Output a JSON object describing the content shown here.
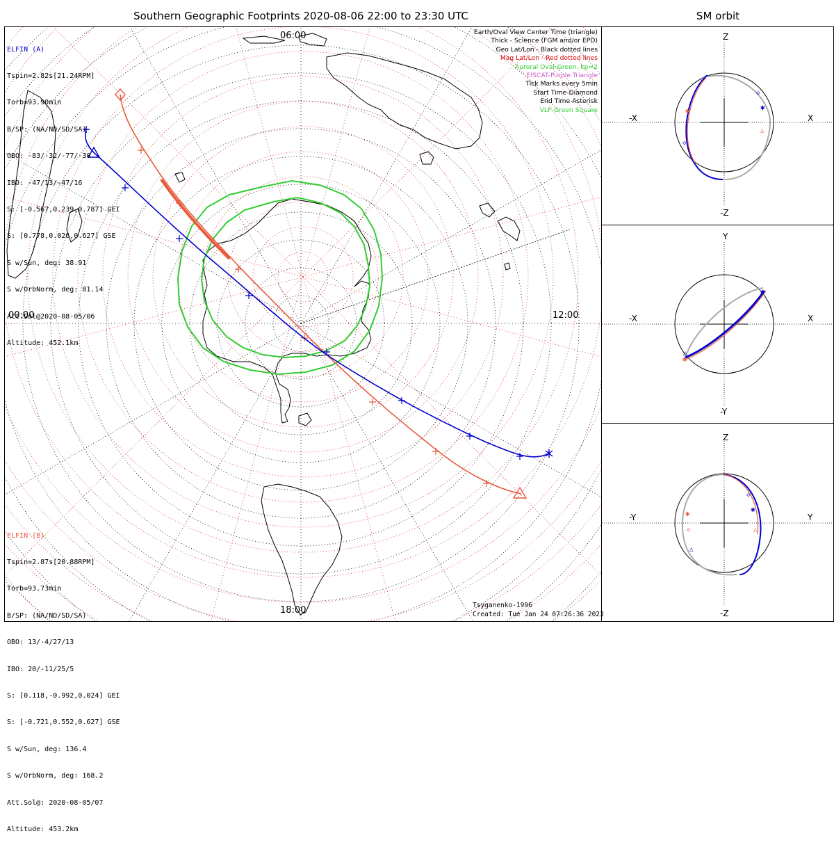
{
  "title": "Southern Geographic Footprints 2020-08-06 22:00 to 23:30 UTC",
  "sm_title": "SM orbit",
  "elfin_a": {
    "name": "ELFIN (A)",
    "color": "#0000cc",
    "lines": [
      "Tspin=2.82s[21.24RPM]",
      "Torb=93.90min",
      "B/SP: (NA/ND/SD/SA)",
      "OBO: -83/-32/-77/-30",
      "IBO: -47/13/-47/16",
      "S: [-0.567,0.239,0.787] GEI",
      "S: [0.778,0.026,0.627] GSE",
      "S w/Sun, deg: 38.91",
      "S w/OrbNorm, deg: 81.14",
      "Att.Sol@2020-08-05/06",
      "Altitude: 452.1km"
    ]
  },
  "elfin_b": {
    "name": "ELFIN (B)",
    "color": "#e85a3c",
    "lines": [
      "Tspin=2.87s[20.88RPM]",
      "Torb=93.73min",
      "B/SP: (NA/ND/SD/SA)",
      "OBO: 13/-4/27/13",
      "IBO: 20/-11/25/5",
      "S: [0.118,-0.992,0.024] GEI",
      "S: [-0.721,0.552,0.627] GSE",
      "S w/Sun, deg: 136.4",
      "S w/OrbNorm, deg: 168.2",
      "Att.Sol@: 2020-08-05/07",
      "Altitude: 453.2km"
    ]
  },
  "legend": [
    {
      "text": "Earth/Oval View Center Time (triangle)",
      "color": "#000000"
    },
    {
      "text": "Thick - Science (FGM and/or EPD)",
      "color": "#000000"
    },
    {
      "text": "Geo Lat/Lon - Black dotted lines",
      "color": "#000000"
    },
    {
      "text": "Mag Lat/Lon - Red dotted lines",
      "color": "#dd0000"
    },
    {
      "text": "Auroral Oval-Green, kp=2",
      "color": "#33cc33"
    },
    {
      "text": "EISCAT-Purple Triangle",
      "color": "#cc55cc"
    },
    {
      "text": "Tick Marks every 5min",
      "color": "#000000"
    },
    {
      "text": "Start Time-Diamond",
      "color": "#000000"
    },
    {
      "text": "End Time-Asterisk",
      "color": "#000000"
    },
    {
      "text": "VLF-Green Square",
      "color": "#33cc33"
    }
  ],
  "map_labels": {
    "top": "06:00",
    "left": "00:00",
    "right": "12:00",
    "bottom": "18:00"
  },
  "credit": {
    "model": "Tsyganenko-1996",
    "created": "Created: Tue Jan 24 07:26:36 2023"
  },
  "sm_panels": [
    {
      "name": "xz",
      "top": "Z",
      "bottom": "-Z",
      "left": "-X",
      "right": "X"
    },
    {
      "name": "xy",
      "top": "Y",
      "bottom": "-Y",
      "left": "-X",
      "right": "X"
    },
    {
      "name": "yz",
      "top": "Z",
      "bottom": "-Z",
      "left": "-Y",
      "right": "Y"
    }
  ],
  "colors": {
    "elfin_a": "#0000cc",
    "elfin_b": "#e85a3c",
    "oval": "#33cc33",
    "mag_grid": "#dd2222",
    "orbit_gray": "#aaaaaa"
  }
}
